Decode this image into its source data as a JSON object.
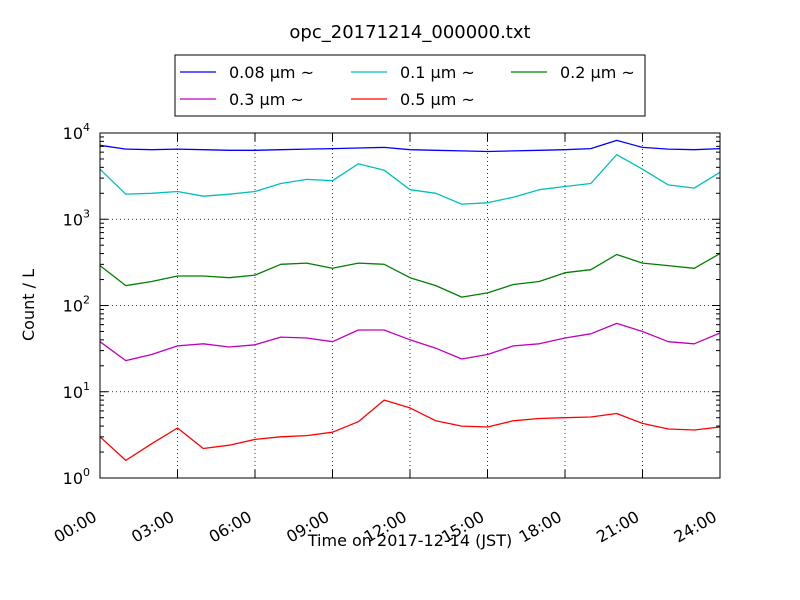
{
  "chart_data": {
    "type": "line",
    "title": "opc_20171214_000000.txt",
    "xlabel": "Time on 2017-12-14 (JST)",
    "ylabel": "Count / L",
    "yscale": "log",
    "xlim": [
      "00:00",
      "24:00"
    ],
    "ylim": [
      1,
      10000
    ],
    "grid": true,
    "legend_position": "top-center",
    "x_ticks": [
      "00:00",
      "03:00",
      "06:00",
      "09:00",
      "12:00",
      "15:00",
      "18:00",
      "21:00",
      "24:00"
    ],
    "y_ticks": [
      {
        "value": 1,
        "base": "10",
        "exp": "0"
      },
      {
        "value": 10,
        "base": "10",
        "exp": "1"
      },
      {
        "value": 100,
        "base": "10",
        "exp": "2"
      },
      {
        "value": 1000,
        "base": "10",
        "exp": "3"
      },
      {
        "value": 10000,
        "base": "10",
        "exp": "4"
      }
    ],
    "x": [
      "00:00",
      "01:00",
      "02:00",
      "03:00",
      "04:00",
      "05:00",
      "06:00",
      "07:00",
      "08:00",
      "09:00",
      "10:00",
      "11:00",
      "12:00",
      "13:00",
      "14:00",
      "15:00",
      "16:00",
      "17:00",
      "18:00",
      "19:00",
      "20:00",
      "21:00",
      "22:00",
      "23:00",
      "24:00"
    ],
    "series": [
      {
        "name": "0.08 µm ~",
        "color": "#0000ff",
        "values": [
          7200,
          6500,
          6400,
          6500,
          6400,
          6300,
          6300,
          6400,
          6500,
          6600,
          6700,
          6800,
          6400,
          6300,
          6200,
          6100,
          6200,
          6300,
          6400,
          6600,
          8200,
          6800,
          6500,
          6400,
          6600
        ]
      },
      {
        "name": "0.1 µm ~",
        "color": "#00bfbf",
        "values": [
          3800,
          1950,
          2000,
          2100,
          1850,
          1950,
          2100,
          2600,
          2900,
          2800,
          4400,
          3700,
          2200,
          2000,
          1500,
          1550,
          1800,
          2200,
          2400,
          2600,
          5600,
          3800,
          2500,
          2300,
          3500
        ]
      },
      {
        "name": "0.2 µm ~",
        "color": "#008000",
        "values": [
          290,
          170,
          190,
          220,
          220,
          210,
          225,
          300,
          310,
          270,
          310,
          300,
          210,
          170,
          125,
          140,
          175,
          190,
          240,
          260,
          390,
          310,
          290,
          270,
          400
        ]
      },
      {
        "name": "0.3 µm ~",
        "color": "#bf00bf",
        "values": [
          38,
          23,
          27,
          34,
          36,
          33,
          35,
          43,
          42,
          38,
          52,
          52,
          40,
          32,
          24,
          27,
          34,
          36,
          42,
          47,
          62,
          50,
          38,
          36,
          48
        ]
      },
      {
        "name": "0.5 µm ~",
        "color": "#ff0000",
        "values": [
          3.0,
          1.6,
          2.5,
          3.8,
          2.2,
          2.4,
          2.8,
          3.0,
          3.1,
          3.4,
          4.5,
          8.0,
          6.5,
          4.6,
          4.0,
          3.9,
          4.6,
          4.9,
          5.0,
          5.1,
          5.6,
          4.3,
          3.7,
          3.6,
          3.9
        ]
      }
    ]
  }
}
